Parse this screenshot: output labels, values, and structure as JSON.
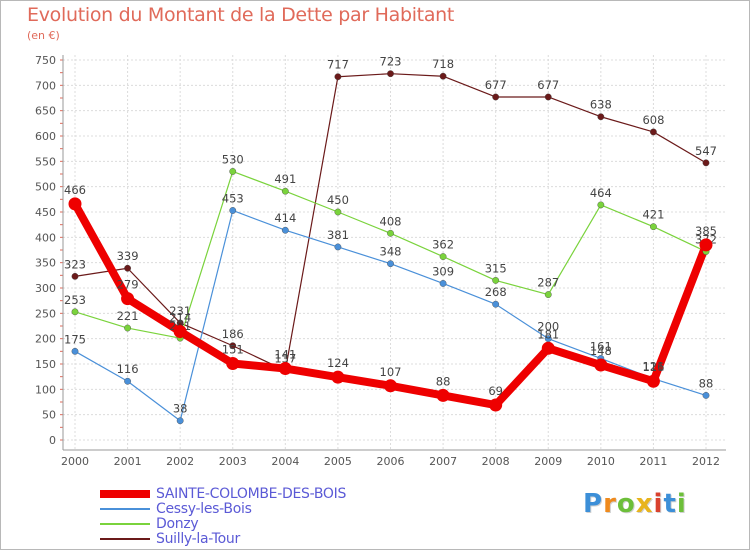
{
  "chart_data": {
    "type": "line",
    "title": "Evolution du Montant de la Dette par Habitant",
    "ylabel": "(en €)",
    "xlabel": "",
    "x": [
      "2000",
      "2001",
      "2002",
      "2003",
      "2004",
      "2005",
      "2006",
      "2007",
      "2008",
      "2009",
      "2010",
      "2011",
      "2012"
    ],
    "ylim": [
      0,
      750
    ],
    "yticks": [
      0,
      50,
      100,
      150,
      200,
      250,
      300,
      350,
      400,
      450,
      500,
      550,
      600,
      650,
      700,
      750
    ],
    "grid": true,
    "legend_position": "bottom-left",
    "series": [
      {
        "name": "Suilly-la-Tour",
        "color": "#6b1a1a",
        "values": [
          323,
          339,
          231,
          186,
          137,
          717,
          723,
          718,
          677,
          677,
          638,
          608,
          547
        ]
      },
      {
        "name": "Donzy",
        "color": "#7ad33c",
        "values": [
          253,
          221,
          201,
          530,
          491,
          450,
          408,
          362,
          315,
          287,
          464,
          421,
          372
        ]
      },
      {
        "name": "Cessy-les-Bois",
        "color": "#4a90d9",
        "values": [
          175,
          116,
          38,
          453,
          414,
          381,
          348,
          309,
          268,
          200,
          161,
          121,
          88
        ]
      },
      {
        "name": "SAINTE-COLOMBE-DES-BOIS",
        "color": "#ee0000",
        "values": [
          466,
          279,
          214,
          151,
          141,
          124,
          107,
          88,
          69,
          181,
          148,
          116,
          385
        ]
      }
    ],
    "legend_order": [
      "SAINTE-COLOMBE-DES-BOIS",
      "Cessy-les-Bois",
      "Donzy",
      "Suilly-la-Tour"
    ]
  },
  "logo": {
    "letters": [
      "P",
      "r",
      "o",
      "x",
      "i",
      "t",
      "i"
    ],
    "colors": [
      "#3c8fd8",
      "#ef8a1d",
      "#6dbf3a",
      "#e8b41d",
      "#d9412e",
      "#3c8fd8",
      "#6dbf3a"
    ]
  }
}
